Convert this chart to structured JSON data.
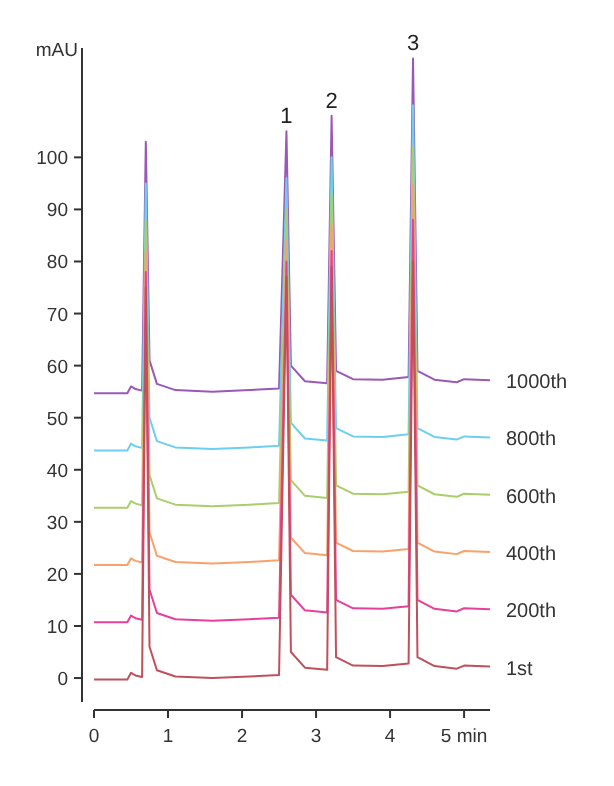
{
  "chart_data": {
    "type": "line",
    "ylabel": "mAU",
    "x": [
      0,
      0.45,
      0.5,
      0.56,
      0.65,
      0.7,
      0.75,
      0.85,
      1.1,
      1.6,
      2.1,
      2.5,
      2.6,
      2.66,
      2.85,
      3.15,
      3.21,
      3.27,
      3.5,
      3.9,
      4.25,
      4.31,
      4.37,
      4.6,
      4.9,
      5.0,
      5.35
    ],
    "series": [
      {
        "name": "1000th",
        "color": "#9b59b6",
        "values": [
          54.7,
          54.7,
          56,
          55.5,
          55.2,
          103,
          61,
          56.5,
          55.3,
          55,
          55.3,
          55.6,
          105,
          60,
          57,
          56.6,
          108,
          59,
          57.4,
          57.3,
          57.8,
          119,
          59,
          57.3,
          56.8,
          57.4,
          57.2
        ]
      },
      {
        "name": "800th",
        "color": "#6dcff0",
        "values": [
          43.7,
          43.7,
          45,
          44.5,
          44.2,
          95,
          50,
          45.5,
          44.3,
          44,
          44.3,
          44.6,
          96,
          49,
          46,
          45.6,
          100,
          48,
          46.4,
          46.3,
          46.8,
          110,
          48,
          46.3,
          45.8,
          46.4,
          46.2
        ]
      },
      {
        "name": "600th",
        "color": "#a9cf6a",
        "values": [
          32.7,
          32.7,
          34,
          33.5,
          33.2,
          88,
          39,
          34.5,
          33.3,
          33,
          33.3,
          33.6,
          90,
          38,
          35,
          34.6,
          93,
          37,
          35.4,
          35.3,
          35.8,
          102,
          37,
          35.3,
          34.8,
          35.4,
          35.2
        ]
      },
      {
        "name": "400th",
        "color": "#f7a26b",
        "values": [
          21.7,
          21.7,
          23,
          22.5,
          22.2,
          82,
          28,
          23.5,
          22.3,
          22,
          22.3,
          22.6,
          84,
          27,
          24,
          23.6,
          87,
          26,
          24.4,
          24.3,
          24.8,
          95,
          26,
          24.3,
          23.8,
          24.4,
          24.2
        ]
      },
      {
        "name": "200th",
        "color": "#e8409a",
        "values": [
          10.7,
          10.7,
          12,
          11.5,
          11.2,
          78,
          17,
          12.5,
          11.3,
          11,
          11.3,
          11.6,
          80,
          16,
          13,
          12.6,
          82,
          15,
          13.4,
          13.3,
          13.8,
          88,
          15,
          13.3,
          12.8,
          13.4,
          13.2
        ]
      },
      {
        "name": "1st",
        "color": "#c0505a",
        "values": [
          -0.3,
          -0.3,
          1,
          0.5,
          0.2,
          75,
          6,
          1.5,
          0.3,
          0,
          0.3,
          0.6,
          77,
          5,
          2,
          1.6,
          79,
          4,
          2.4,
          2.3,
          2.8,
          80,
          4,
          2.3,
          1.8,
          2.4,
          2.2
        ]
      }
    ],
    "xlim": [
      0,
      5.35
    ],
    "xticks": [
      0,
      1,
      2,
      3,
      4,
      {
        "value": 5,
        "label": "5 min"
      }
    ],
    "ylim": [
      -4.6,
      121
    ],
    "yticks": [
      0,
      10,
      20,
      30,
      40,
      50,
      60,
      70,
      80,
      90,
      100
    ],
    "annotations": [
      {
        "text": "1",
        "x": 2.6,
        "y": 105
      },
      {
        "text": "2",
        "x": 3.21,
        "y": 108
      },
      {
        "text": "3",
        "x": 4.31,
        "y": 119
      }
    ],
    "grid": false,
    "line_style": "solid"
  }
}
